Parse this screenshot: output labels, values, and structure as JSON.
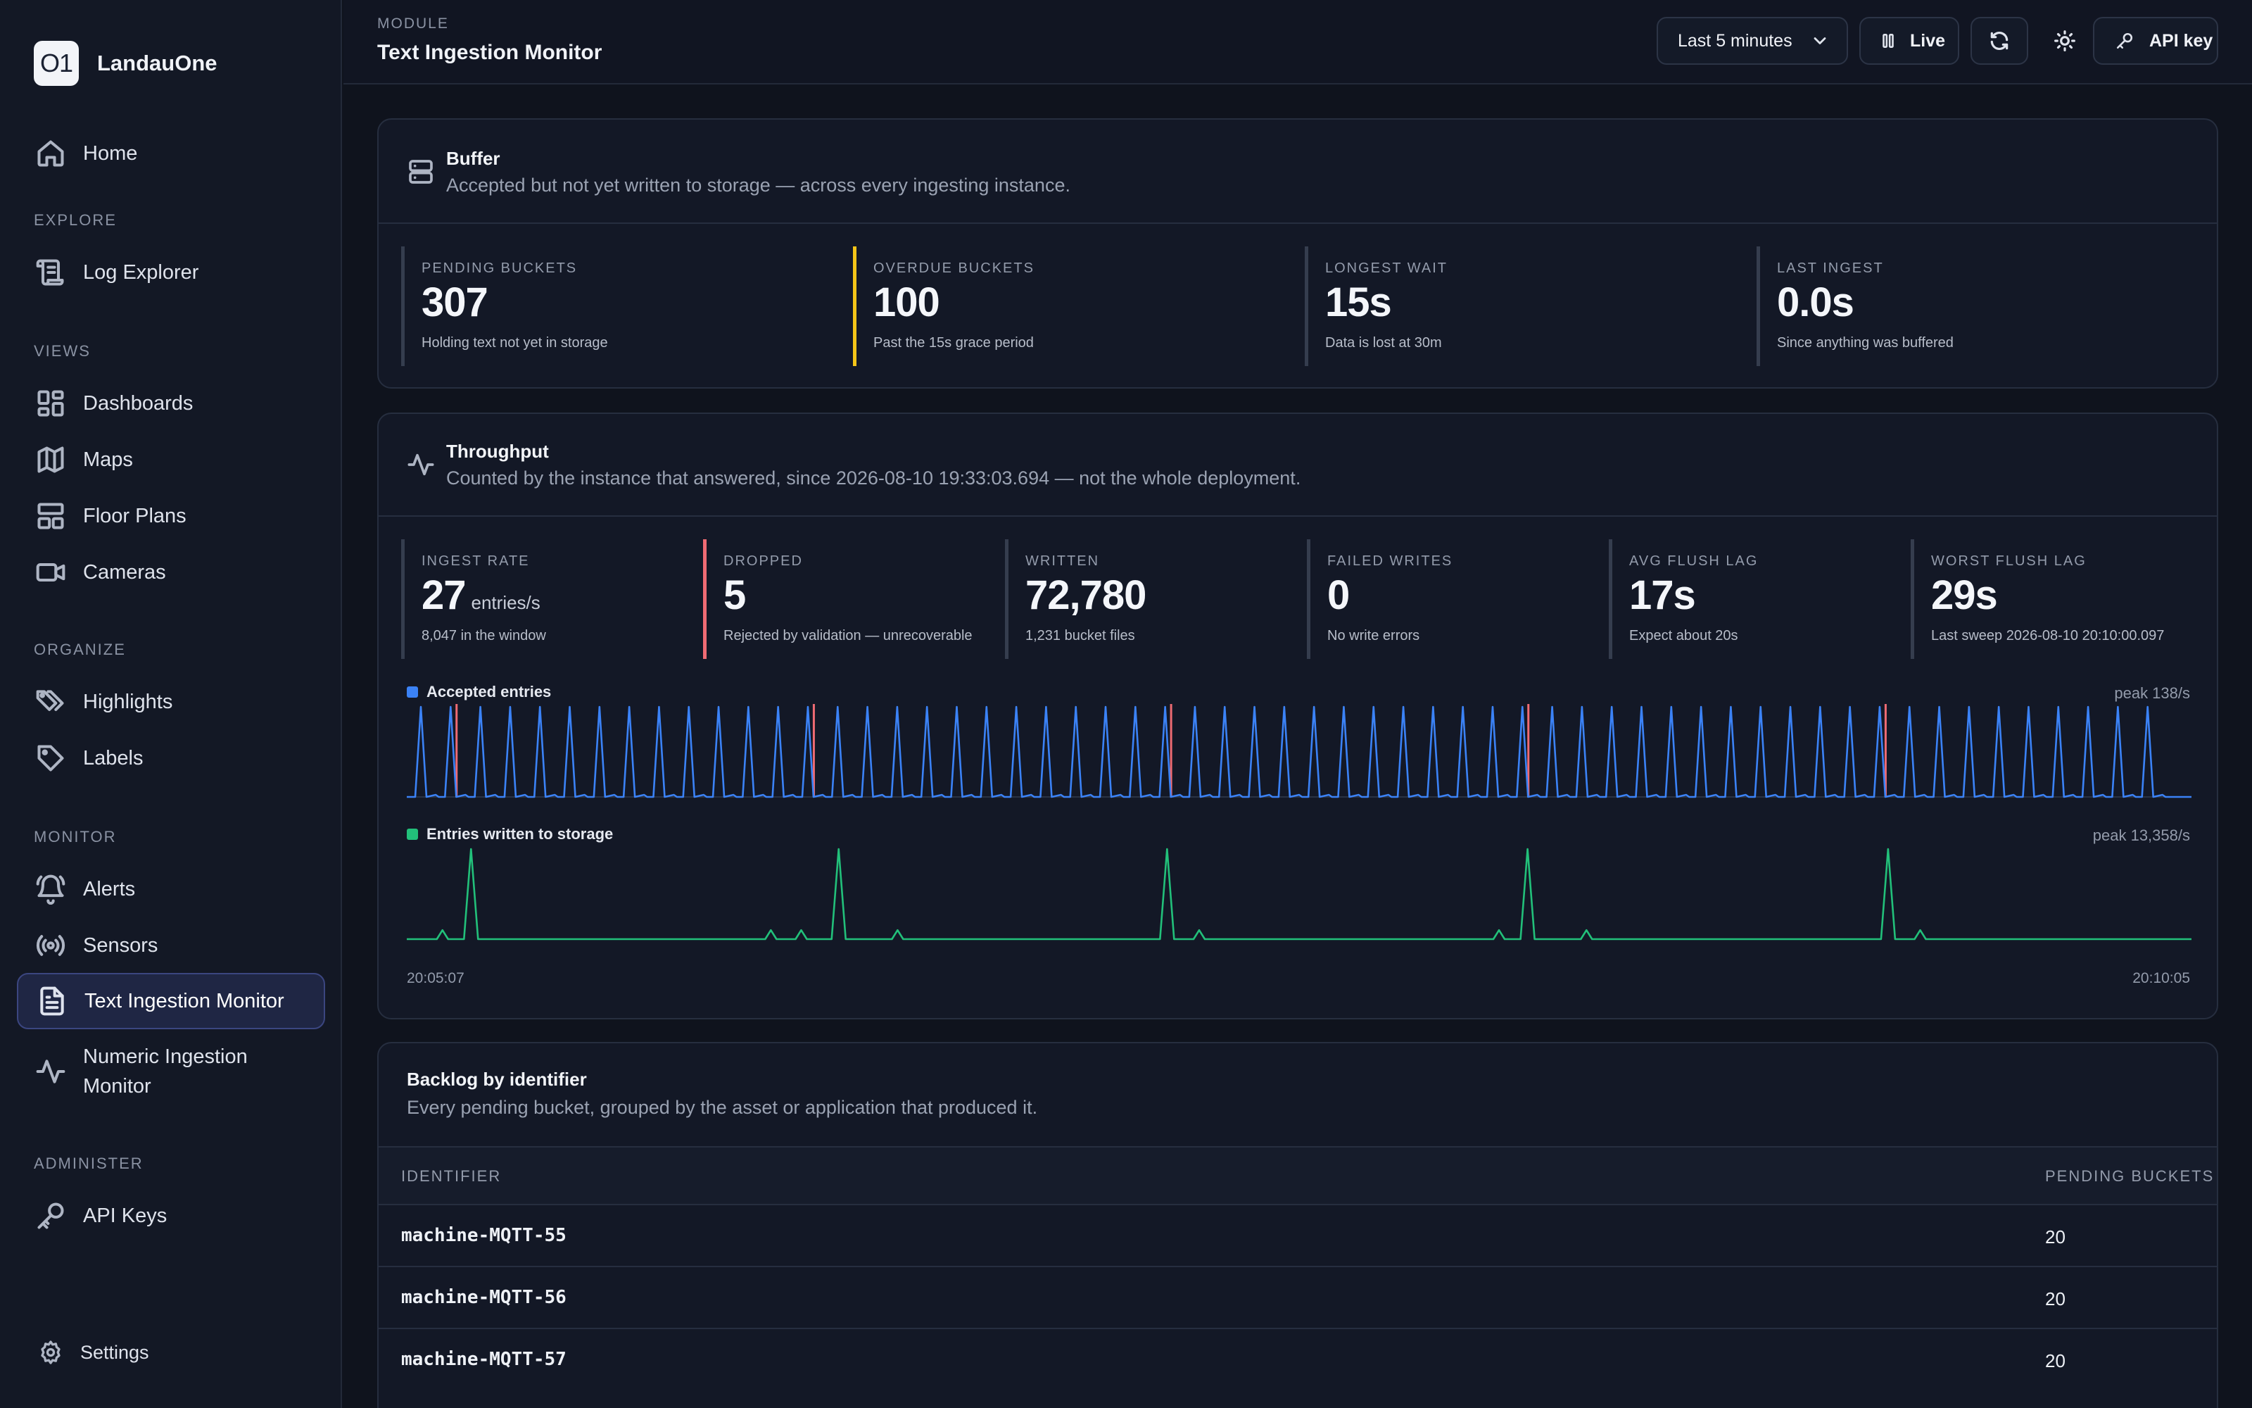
{
  "app": {
    "name": "LandauOne",
    "logo_text": "O1"
  },
  "sidebar": {
    "sections": {
      "explore": "EXPLORE",
      "views": "VIEWS",
      "organize": "ORGANIZE",
      "monitor": "MONITOR",
      "administer": "ADMINISTER"
    },
    "items": {
      "home": "Home",
      "log_explorer": "Log Explorer",
      "dashboards": "Dashboards",
      "maps": "Maps",
      "floor_plans": "Floor Plans",
      "cameras": "Cameras",
      "highlights": "Highlights",
      "labels": "Labels",
      "alerts": "Alerts",
      "sensors": "Sensors",
      "text_ingestion": "Text Ingestion Monitor",
      "numeric_ingestion": "Numeric Ingestion Monitor",
      "api_keys": "API Keys",
      "settings": "Settings"
    },
    "active": "text_ingestion"
  },
  "header": {
    "module_label": "MODULE",
    "title": "Text Ingestion Monitor",
    "time_range": "Last 5 minutes",
    "live_label": "Live",
    "api_key_label": "API key"
  },
  "buffer": {
    "title": "Buffer",
    "description": "Accepted but not yet written to storage — across every ingesting instance.",
    "stats": [
      {
        "label": "PENDING BUCKETS",
        "value": "307",
        "sub": "Holding text not yet in storage",
        "accent": "#353d4e"
      },
      {
        "label": "OVERDUE BUCKETS",
        "value": "100",
        "sub": "Past the 15s grace period",
        "accent": "#f5c518"
      },
      {
        "label": "LONGEST WAIT",
        "value": "15s",
        "sub": "Data is lost at 30m",
        "accent": "#353d4e"
      },
      {
        "label": "LAST INGEST",
        "value": "0.0s",
        "sub": "Since anything was buffered",
        "accent": "#353d4e"
      }
    ]
  },
  "throughput": {
    "title": "Throughput",
    "description": "Counted by the instance that answered, since 2026-08-10 19:33:03.694 — not the whole deployment.",
    "stats": [
      {
        "label": "INGEST RATE",
        "value": "27",
        "unit": "entries/s",
        "sub": "8,047 in the window",
        "accent": "#353d4e"
      },
      {
        "label": "DROPPED",
        "value": "5",
        "unit": "",
        "sub": "Rejected by validation — unrecoverable",
        "accent": "#ef6b73"
      },
      {
        "label": "WRITTEN",
        "value": "72,780",
        "unit": "",
        "sub": "1,231 bucket files",
        "accent": "#353d4e"
      },
      {
        "label": "FAILED WRITES",
        "value": "0",
        "unit": "",
        "sub": "No write errors",
        "accent": "#353d4e"
      },
      {
        "label": "AVG FLUSH LAG",
        "value": "17s",
        "unit": "",
        "sub": "Expect about 20s",
        "accent": "#353d4e"
      },
      {
        "label": "WORST FLUSH LAG",
        "value": "29s",
        "unit": "",
        "sub": "Last sweep 2026-08-10 20:10:00.097",
        "accent": "#353d4e"
      }
    ],
    "x_start": "20:05:07",
    "x_end": "20:10:05"
  },
  "chart_data": [
    {
      "type": "line",
      "title": "",
      "series": [
        {
          "name": "Accepted entries",
          "color": "#3b82f6",
          "peak_label": "peak 138/s",
          "spike_count": 59,
          "spike_value": 138,
          "dropped_marker_color": "#ef6b73",
          "dropped_marker_indices": [
            1,
            13,
            25,
            37,
            49
          ]
        }
      ],
      "ylim": [
        0,
        138
      ],
      "x_range": [
        "20:05:07",
        "20:10:05"
      ]
    },
    {
      "type": "line",
      "title": "",
      "series": [
        {
          "name": "Entries written to storage",
          "color": "#22c07a",
          "peak_label": "peak 13,358/s",
          "big_spike_fractions": [
            0.036,
            0.242,
            0.426,
            0.628,
            0.83
          ],
          "small_spike_fractions": [
            0.02,
            0.204,
            0.221,
            0.275,
            0.444,
            0.612,
            0.661,
            0.848
          ],
          "spike_value": 13358
        }
      ],
      "ylim": [
        0,
        13358
      ],
      "x_range": [
        "20:05:07",
        "20:10:05"
      ]
    }
  ],
  "backlog": {
    "title": "Backlog by identifier",
    "description": "Every pending bucket, grouped by the asset or application that produced it.",
    "columns": [
      "IDENTIFIER",
      "PENDING BUCKETS"
    ],
    "rows": [
      {
        "identifier": "machine-MQTT-55",
        "pending": "20"
      },
      {
        "identifier": "machine-MQTT-56",
        "pending": "20"
      },
      {
        "identifier": "machine-MQTT-57",
        "pending": "20"
      }
    ]
  }
}
